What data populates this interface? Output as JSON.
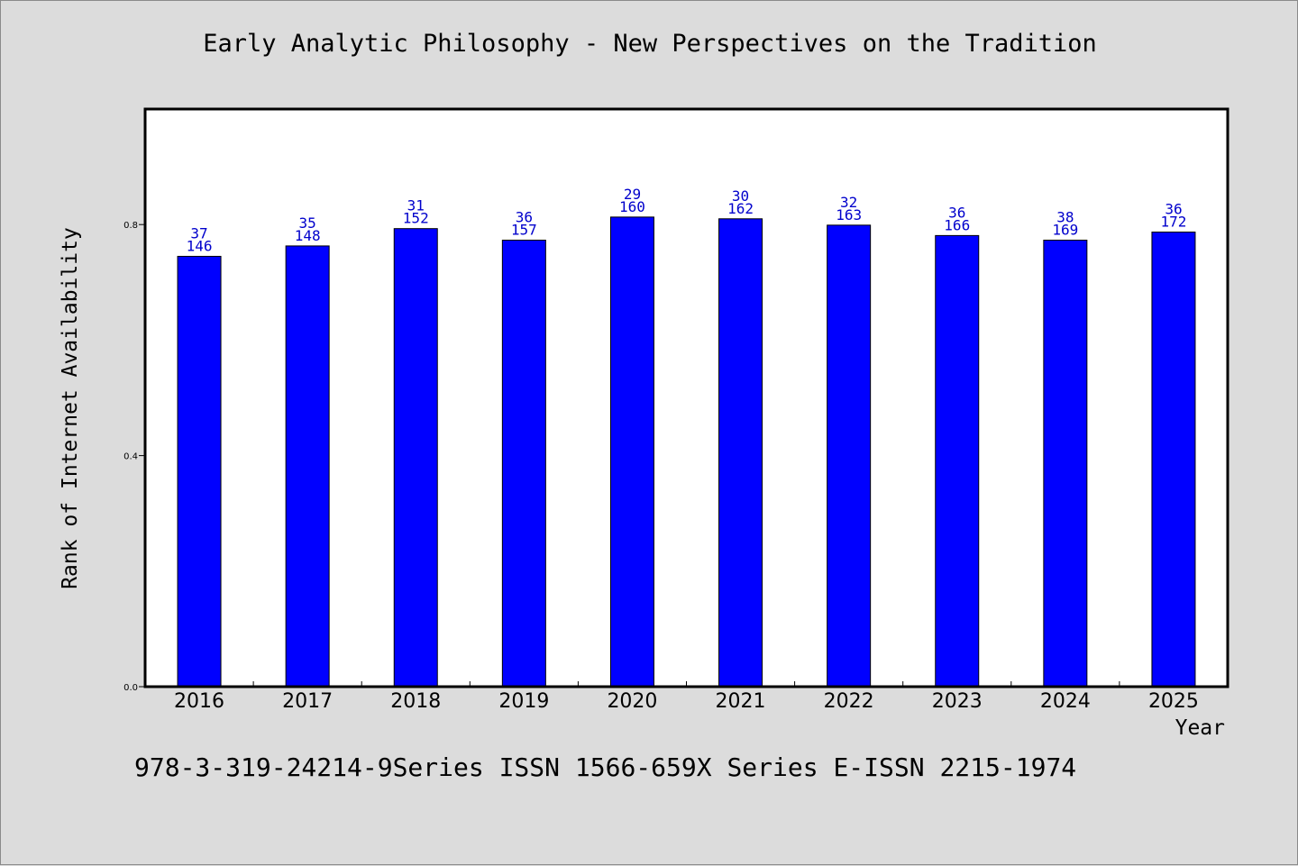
{
  "chart_data": {
    "type": "bar",
    "title": "Early Analytic Philosophy - New Perspectives on the Tradition",
    "xlabel": "Year",
    "ylabel": "Rank of Internet Availability",
    "categories": [
      "2016",
      "2017",
      "2018",
      "2019",
      "2020",
      "2021",
      "2022",
      "2023",
      "2024",
      "2025"
    ],
    "values": [
      0.745,
      0.763,
      0.793,
      0.773,
      0.813,
      0.81,
      0.799,
      0.781,
      0.773,
      0.787
    ],
    "labels_top": [
      "37",
      "35",
      "31",
      "36",
      "29",
      "30",
      "32",
      "36",
      "38",
      "36"
    ],
    "labels_bottom": [
      "146",
      "148",
      "152",
      "157",
      "160",
      "162",
      "163",
      "166",
      "169",
      "172"
    ],
    "ylim": [
      0,
      1.0
    ],
    "yticks": [
      {
        "value": 0.0,
        "label": "0.0"
      },
      {
        "value": 0.4,
        "label": "0.4"
      },
      {
        "value": 0.8,
        "label": "0.8"
      }
    ],
    "bar_color": "#0000ff",
    "label_color": "#0000cc",
    "grid": false
  },
  "footnote": "978-3-319-24214-9Series ISSN 1566-659X Series E-ISSN 2215-1974"
}
